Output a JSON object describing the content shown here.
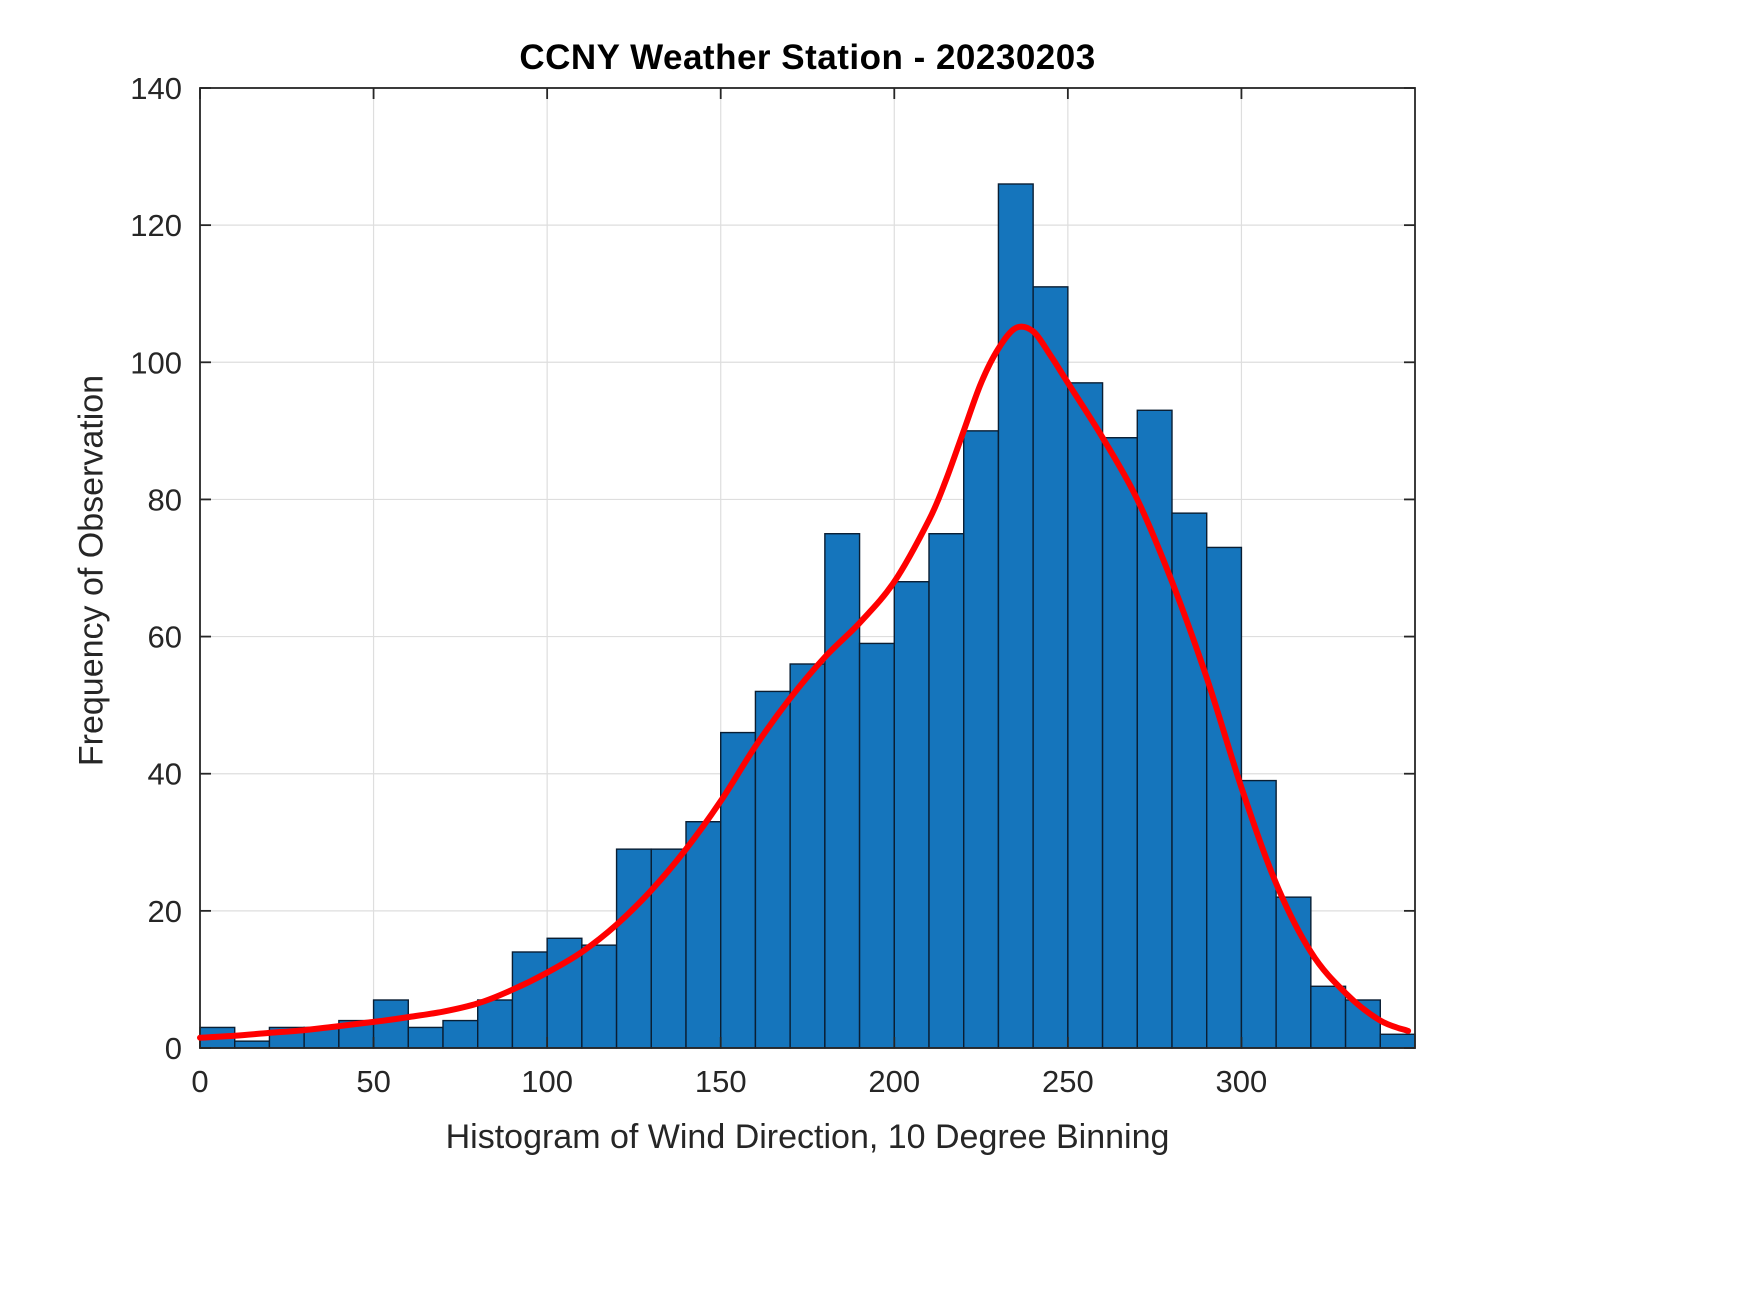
{
  "figure": {
    "background": "#FFFFFF"
  },
  "chart_data": {
    "type": "bar",
    "subtype": "histogram-with-fit-curve",
    "title": "CCNY Weather Station - 20230203",
    "xlabel": "Histogram of Wind Direction, 10 Degree Binning",
    "ylabel": "Frequency of Observation",
    "xlim": [
      0,
      350
    ],
    "ylim": [
      0,
      140
    ],
    "xticks": [
      0,
      50,
      100,
      150,
      200,
      250,
      300
    ],
    "yticks": [
      0,
      20,
      40,
      60,
      80,
      100,
      120,
      140
    ],
    "grid": true,
    "grid_color": "#DEDEDE",
    "axis_color": "#262626",
    "bin_width_degrees": 10,
    "bin_start_degree": 0,
    "bar_values": [
      3,
      1,
      3,
      3,
      4,
      7,
      3,
      4,
      7,
      14,
      16,
      15,
      29,
      29,
      33,
      46,
      52,
      56,
      75,
      59,
      68,
      75,
      90,
      126,
      111,
      97,
      89,
      93,
      78,
      73,
      39,
      22,
      9,
      7,
      2
    ],
    "bar_color": "#1575BC",
    "bar_edge_color": "#0A1E33",
    "curve": {
      "name": "smoothed-fit",
      "color": "#FF0000",
      "width": 6,
      "x": [
        0,
        10,
        20,
        30,
        40,
        50,
        60,
        70,
        80,
        90,
        100,
        110,
        120,
        130,
        140,
        150,
        160,
        170,
        180,
        190,
        200,
        210,
        215,
        220,
        225,
        230,
        235,
        240,
        245,
        250,
        260,
        270,
        280,
        290,
        300,
        310,
        320,
        330,
        340,
        348
      ],
      "y": [
        1.5,
        1.8,
        2.2,
        2.6,
        3.2,
        3.8,
        4.5,
        5.3,
        6.5,
        8.5,
        11,
        14,
        18,
        23,
        29,
        36,
        44,
        51,
        57,
        62,
        68,
        77,
        83,
        90,
        97,
        102,
        105,
        104.5,
        101,
        97,
        89,
        80,
        68,
        54,
        38,
        24,
        14,
        8,
        4,
        2.5
      ]
    }
  }
}
